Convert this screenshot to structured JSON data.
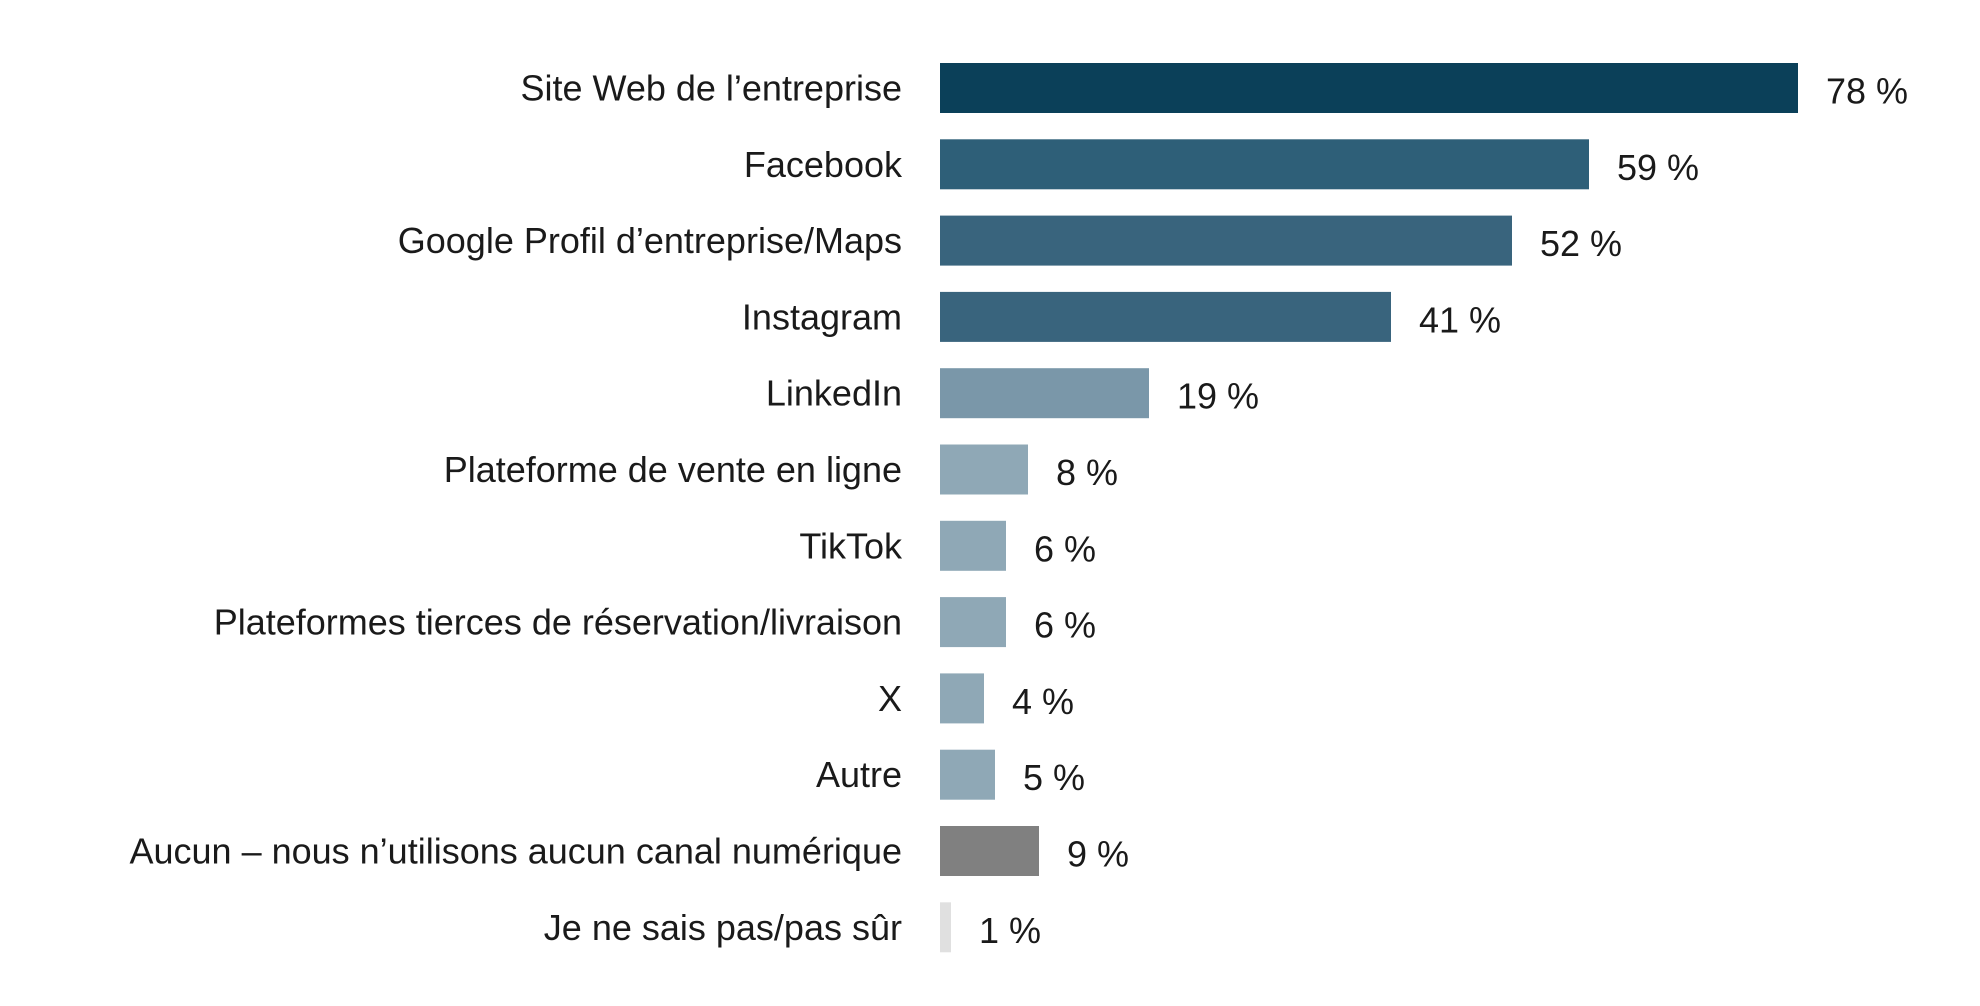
{
  "chart_data": {
    "type": "bar",
    "orientation": "horizontal",
    "title": "",
    "xlabel": "",
    "ylabel": "",
    "xlim": [
      0,
      100
    ],
    "grid": false,
    "value_suffix": " %",
    "categories": [
      "Site Web de l’entreprise",
      "Facebook",
      "Google Profil d’entreprise/Maps",
      "Instagram",
      "LinkedIn",
      "Plateforme de vente en ligne",
      "TikTok",
      "Plateformes tierces de réservation/livraison",
      "X",
      "Autre",
      "Aucun – nous n’utilisons aucun canal numérique",
      "Je ne sais pas/pas sûr"
    ],
    "values": [
      78,
      59,
      52,
      41,
      19,
      8,
      6,
      6,
      4,
      5,
      9,
      1
    ],
    "value_labels": [
      "78 %",
      "59 %",
      "52 %",
      "41 %",
      "19 %",
      "8 %",
      "6 %",
      "6 %",
      "4 %",
      "5 %",
      "9 %",
      "1 %"
    ],
    "colors": [
      "#0b4059",
      "#2e5f78",
      "#39647d",
      "#39647d",
      "#7a97a9",
      "#8fa8b6",
      "#8fa8b6",
      "#8fa8b6",
      "#8fa8b6",
      "#8fa8b6",
      "#808080",
      "#e0e0e0"
    ]
  }
}
